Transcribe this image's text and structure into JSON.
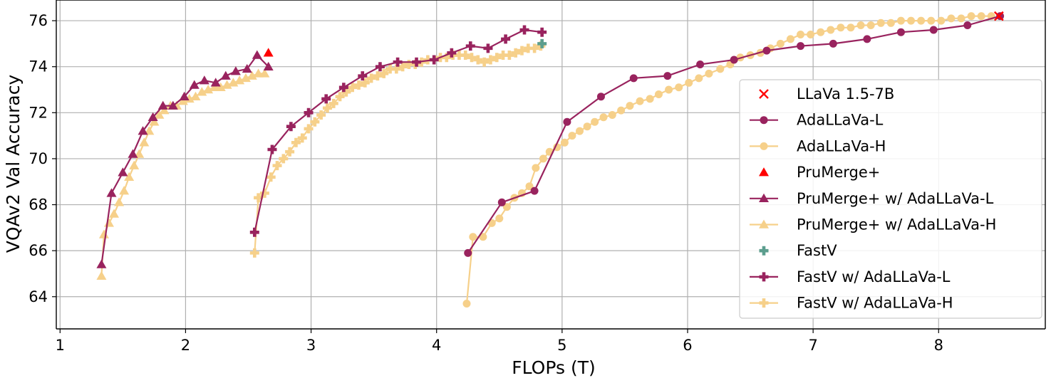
{
  "chart_data": {
    "type": "line",
    "xlabel": "FLOPs (T)",
    "ylabel": "VQAv2 Val Accuracy",
    "xlim": [
      0.97,
      8.85
    ],
    "ylim": [
      62.6,
      76.9
    ],
    "xticks": [
      1,
      2,
      3,
      4,
      5,
      6,
      7,
      8
    ],
    "yticks": [
      64,
      66,
      68,
      70,
      72,
      74,
      76
    ],
    "grid": true,
    "legend_position": "lower-right",
    "colors": {
      "dark": "#99235e",
      "light": "#f6d08a",
      "red": "#ff0000",
      "teal": "#5c9e8e"
    },
    "series": [
      {
        "name": "LLaVa 1.5-7B",
        "marker": "x",
        "color": "#ff0000",
        "line": false,
        "points": [
          [
            8.48,
            76.2
          ]
        ]
      },
      {
        "name": "AdaLLaVa-L",
        "marker": "circle",
        "color": "#99235e",
        "line": true,
        "points": [
          [
            4.25,
            65.9
          ],
          [
            4.52,
            68.1
          ],
          [
            4.78,
            68.6
          ],
          [
            5.04,
            71.6
          ],
          [
            5.31,
            72.7
          ],
          [
            5.57,
            73.5
          ],
          [
            5.84,
            73.6
          ],
          [
            6.1,
            74.1
          ],
          [
            6.37,
            74.3
          ],
          [
            6.63,
            74.7
          ],
          [
            6.9,
            74.9
          ],
          [
            7.16,
            75.0
          ],
          [
            7.43,
            75.2
          ],
          [
            7.7,
            75.5
          ],
          [
            7.96,
            75.6
          ],
          [
            8.23,
            75.8
          ],
          [
            8.49,
            76.2
          ]
        ]
      },
      {
        "name": "AdaLLaVa-H",
        "marker": "circle",
        "color": "#f6d08a",
        "line": true,
        "points": [
          [
            4.24,
            63.7
          ],
          [
            4.29,
            66.6
          ],
          [
            4.37,
            66.6
          ],
          [
            4.44,
            67.2
          ],
          [
            4.5,
            67.4
          ],
          [
            4.56,
            67.9
          ],
          [
            4.62,
            68.3
          ],
          [
            4.68,
            68.5
          ],
          [
            4.74,
            68.8
          ],
          [
            4.79,
            69.6
          ],
          [
            4.85,
            70.0
          ],
          [
            4.9,
            70.3
          ],
          [
            4.96,
            70.5
          ],
          [
            5.02,
            70.7
          ],
          [
            5.08,
            71.0
          ],
          [
            5.14,
            71.2
          ],
          [
            5.2,
            71.4
          ],
          [
            5.26,
            71.6
          ],
          [
            5.33,
            71.8
          ],
          [
            5.4,
            71.9
          ],
          [
            5.47,
            72.1
          ],
          [
            5.54,
            72.3
          ],
          [
            5.62,
            72.5
          ],
          [
            5.7,
            72.6
          ],
          [
            5.77,
            72.8
          ],
          [
            5.85,
            73.0
          ],
          [
            5.93,
            73.1
          ],
          [
            6.01,
            73.3
          ],
          [
            6.09,
            73.5
          ],
          [
            6.17,
            73.7
          ],
          [
            6.26,
            73.9
          ],
          [
            6.34,
            74.1
          ],
          [
            6.42,
            74.4
          ],
          [
            6.5,
            74.5
          ],
          [
            6.58,
            74.6
          ],
          [
            6.66,
            74.8
          ],
          [
            6.74,
            75.0
          ],
          [
            6.82,
            75.2
          ],
          [
            6.9,
            75.4
          ],
          [
            6.98,
            75.4
          ],
          [
            7.06,
            75.5
          ],
          [
            7.14,
            75.6
          ],
          [
            7.22,
            75.7
          ],
          [
            7.3,
            75.7
          ],
          [
            7.38,
            75.8
          ],
          [
            7.46,
            75.8
          ],
          [
            7.54,
            75.9
          ],
          [
            7.62,
            75.9
          ],
          [
            7.7,
            76.0
          ],
          [
            7.78,
            76.0
          ],
          [
            7.86,
            76.0
          ],
          [
            7.94,
            76.0
          ],
          [
            8.02,
            76.0
          ],
          [
            8.1,
            76.1
          ],
          [
            8.18,
            76.1
          ],
          [
            8.26,
            76.2
          ],
          [
            8.34,
            76.2
          ],
          [
            8.42,
            76.2
          ]
        ]
      },
      {
        "name": "PruMerge+",
        "marker": "triangle",
        "color": "#ff0000",
        "line": false,
        "points": [
          [
            2.66,
            74.6
          ]
        ]
      },
      {
        "name": "PruMerge+ w/ AdaLLaVa-L",
        "marker": "triangle",
        "color": "#99235e",
        "line": true,
        "points": [
          [
            1.33,
            65.4
          ],
          [
            1.41,
            68.5
          ],
          [
            1.5,
            69.4
          ],
          [
            1.58,
            70.2
          ],
          [
            1.66,
            71.2
          ],
          [
            1.74,
            71.8
          ],
          [
            1.82,
            72.3
          ],
          [
            1.9,
            72.3
          ],
          [
            1.99,
            72.7
          ],
          [
            2.07,
            73.2
          ],
          [
            2.15,
            73.4
          ],
          [
            2.24,
            73.3
          ],
          [
            2.32,
            73.6
          ],
          [
            2.4,
            73.8
          ],
          [
            2.49,
            73.9
          ],
          [
            2.57,
            74.5
          ],
          [
            2.66,
            74.0
          ]
        ]
      },
      {
        "name": "PruMerge+ w/ AdaLLaVa-H",
        "marker": "triangle",
        "color": "#f6d08a",
        "line": true,
        "points": [
          [
            1.33,
            64.9
          ],
          [
            1.35,
            66.7
          ],
          [
            1.39,
            67.2
          ],
          [
            1.43,
            67.6
          ],
          [
            1.47,
            68.1
          ],
          [
            1.51,
            68.6
          ],
          [
            1.55,
            69.2
          ],
          [
            1.59,
            69.7
          ],
          [
            1.63,
            70.2
          ],
          [
            1.67,
            70.7
          ],
          [
            1.71,
            71.2
          ],
          [
            1.75,
            71.6
          ],
          [
            1.79,
            71.9
          ],
          [
            1.83,
            72.1
          ],
          [
            1.88,
            72.3
          ],
          [
            1.93,
            72.3
          ],
          [
            1.98,
            72.5
          ],
          [
            2.03,
            72.6
          ],
          [
            2.08,
            72.7
          ],
          [
            2.13,
            72.9
          ],
          [
            2.18,
            73.0
          ],
          [
            2.23,
            73.1
          ],
          [
            2.28,
            73.1
          ],
          [
            2.33,
            73.2
          ],
          [
            2.38,
            73.3
          ],
          [
            2.43,
            73.4
          ],
          [
            2.48,
            73.5
          ],
          [
            2.53,
            73.6
          ],
          [
            2.58,
            73.7
          ],
          [
            2.63,
            73.7
          ]
        ]
      },
      {
        "name": "FastV",
        "marker": "plus",
        "color": "#5c9e8e",
        "line": false,
        "points": [
          [
            4.84,
            75.0
          ]
        ]
      },
      {
        "name": "FastV w/ AdaLLaVa-L",
        "marker": "plus",
        "color": "#99235e",
        "line": true,
        "points": [
          [
            2.55,
            66.8
          ],
          [
            2.69,
            70.4
          ],
          [
            2.84,
            71.4
          ],
          [
            2.98,
            72.0
          ],
          [
            3.12,
            72.6
          ],
          [
            3.26,
            73.1
          ],
          [
            3.41,
            73.6
          ],
          [
            3.55,
            74.0
          ],
          [
            3.69,
            74.2
          ],
          [
            3.84,
            74.2
          ],
          [
            3.98,
            74.3
          ],
          [
            4.12,
            74.6
          ],
          [
            4.27,
            74.9
          ],
          [
            4.41,
            74.8
          ],
          [
            4.55,
            75.2
          ],
          [
            4.7,
            75.6
          ],
          [
            4.84,
            75.5
          ]
        ]
      },
      {
        "name": "FastV w/ AdaLLaVa-H",
        "marker": "plus",
        "color": "#f6d08a",
        "line": true,
        "points": [
          [
            2.55,
            65.9
          ],
          [
            2.58,
            68.3
          ],
          [
            2.63,
            68.5
          ],
          [
            2.68,
            69.2
          ],
          [
            2.73,
            69.7
          ],
          [
            2.78,
            70.0
          ],
          [
            2.83,
            70.3
          ],
          [
            2.88,
            70.7
          ],
          [
            2.93,
            70.9
          ],
          [
            2.98,
            71.3
          ],
          [
            3.03,
            71.6
          ],
          [
            3.08,
            71.9
          ],
          [
            3.13,
            72.2
          ],
          [
            3.18,
            72.4
          ],
          [
            3.23,
            72.7
          ],
          [
            3.28,
            72.9
          ],
          [
            3.33,
            73.1
          ],
          [
            3.38,
            73.2
          ],
          [
            3.43,
            73.3
          ],
          [
            3.48,
            73.5
          ],
          [
            3.53,
            73.6
          ],
          [
            3.58,
            73.7
          ],
          [
            3.63,
            73.9
          ],
          [
            3.68,
            73.9
          ],
          [
            3.73,
            74.0
          ],
          [
            3.78,
            74.1
          ],
          [
            3.83,
            74.1
          ],
          [
            3.88,
            74.2
          ],
          [
            3.93,
            74.3
          ],
          [
            3.98,
            74.3
          ],
          [
            4.03,
            74.4
          ],
          [
            4.08,
            74.4
          ],
          [
            4.13,
            74.5
          ],
          [
            4.18,
            74.5
          ],
          [
            4.23,
            74.5
          ],
          [
            4.28,
            74.4
          ],
          [
            4.33,
            74.3
          ],
          [
            4.38,
            74.2
          ],
          [
            4.43,
            74.3
          ],
          [
            4.48,
            74.4
          ],
          [
            4.53,
            74.5
          ],
          [
            4.58,
            74.5
          ],
          [
            4.63,
            74.6
          ],
          [
            4.68,
            74.7
          ],
          [
            4.73,
            74.8
          ],
          [
            4.78,
            74.8
          ],
          [
            4.83,
            74.9
          ]
        ]
      }
    ]
  }
}
